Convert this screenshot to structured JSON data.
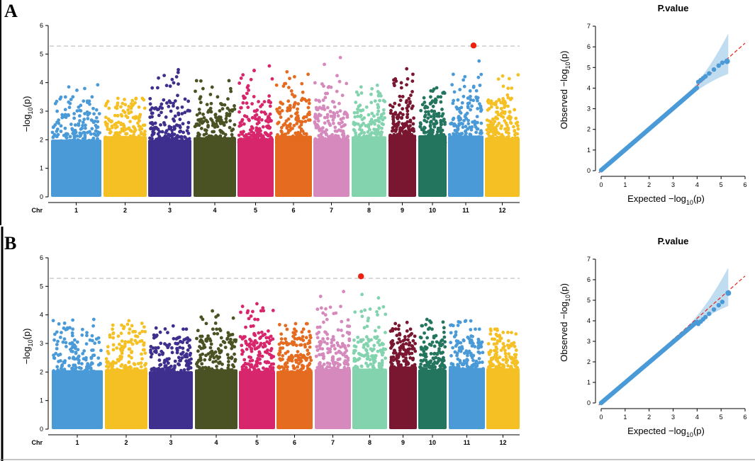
{
  "panels": [
    {
      "label": "A",
      "manhattan": {
        "chr_label": "Chr",
        "y_label_prefix": "−log",
        "y_label_sub": "10",
        "y_label_suffix": "(p)",
        "threshold": 5.28,
        "significant_snps": [
          {
            "chr": "11",
            "position": 0.72,
            "value": 5.3
          }
        ]
      },
      "qq": {
        "title": "P.value",
        "x_label": "Expected  −log",
        "y_label": "Observed  −log",
        "sub": "10",
        "suffix": "(p)",
        "max_value": 5.3
      }
    },
    {
      "label": "B",
      "manhattan": {
        "chr_label": "Chr",
        "y_label_prefix": "−log",
        "y_label_sub": "10",
        "y_label_suffix": "(p)",
        "threshold": 5.28,
        "significant_snps": [
          {
            "chr": "8",
            "position": 0.25,
            "value": 5.35
          }
        ]
      },
      "qq": {
        "title": "P.value",
        "x_label": "Expected  −log",
        "y_label": "Observed  −log",
        "sub": "10",
        "suffix": "(p)",
        "max_value": 5.35
      }
    }
  ],
  "chart_data": [
    {
      "type": "scatter",
      "name": "Manhattan plot A",
      "xlabel": "Chr",
      "ylabel": "−log10(p)",
      "ylim": [
        0,
        6
      ],
      "yticks": [
        0,
        1,
        2,
        3,
        4,
        5,
        6
      ],
      "categories": [
        "1",
        "2",
        "3",
        "4",
        "5",
        "6",
        "7",
        "8",
        "9",
        "10",
        "11",
        "12"
      ],
      "threshold": 5.28,
      "chromosome_peak_values": [
        3.95,
        3.45,
        4.65,
        4.1,
        4.65,
        4.45,
        4.95,
        3.95,
        4.7,
        3.95,
        5.3,
        4.35
      ],
      "chromosome_colors": [
        "#4a9ad8",
        "#f5c024",
        "#3e2f8e",
        "#4a5224",
        "#d8266c",
        "#e46b1f",
        "#d589bc",
        "#83d3af",
        "#7a1730",
        "#23755e",
        "#4a9ad8",
        "#f5c024"
      ],
      "significant_color": "#ee2010"
    },
    {
      "type": "scatter",
      "name": "QQ plot A",
      "title": "P.value",
      "xlabel": "Expected −log10(p)",
      "ylabel": "Observed −log10(p)",
      "xlim": [
        0,
        6
      ],
      "ylim": [
        0,
        7
      ],
      "xticks": [
        0,
        1,
        2,
        3,
        4,
        5,
        6
      ],
      "yticks": [
        0,
        1,
        2,
        3,
        4,
        5,
        6,
        7
      ],
      "max_observed": 5.3,
      "point_color": "#4a9ad8",
      "line_color": "#e02418"
    },
    {
      "type": "scatter",
      "name": "Manhattan plot B",
      "xlabel": "Chr",
      "ylabel": "−log10(p)",
      "ylim": [
        0,
        6
      ],
      "yticks": [
        0,
        1,
        2,
        3,
        4,
        5,
        6
      ],
      "categories": [
        "1",
        "2",
        "3",
        "4",
        "5",
        "6",
        "7",
        "8",
        "9",
        "10",
        "11",
        "12"
      ],
      "threshold": 5.28,
      "chromosome_peak_values": [
        3.9,
        3.8,
        3.75,
        4.15,
        4.6,
        3.7,
        4.85,
        5.35,
        3.8,
        3.9,
        3.8,
        3.6
      ],
      "chromosome_colors": [
        "#4a9ad8",
        "#f5c024",
        "#3e2f8e",
        "#4a5224",
        "#d8266c",
        "#e46b1f",
        "#d589bc",
        "#83d3af",
        "#7a1730",
        "#23755e",
        "#4a9ad8",
        "#f5c024"
      ],
      "significant_color": "#ee2010"
    },
    {
      "type": "scatter",
      "name": "QQ plot B",
      "title": "P.value",
      "xlabel": "Expected −log10(p)",
      "ylabel": "Observed −log10(p)",
      "xlim": [
        0,
        6
      ],
      "ylim": [
        0,
        7
      ],
      "xticks": [
        0,
        1,
        2,
        3,
        4,
        5,
        6
      ],
      "yticks": [
        0,
        1,
        2,
        3,
        4,
        5,
        6,
        7
      ],
      "max_observed": 5.35,
      "point_color": "#4a9ad8",
      "line_color": "#e02418"
    }
  ]
}
